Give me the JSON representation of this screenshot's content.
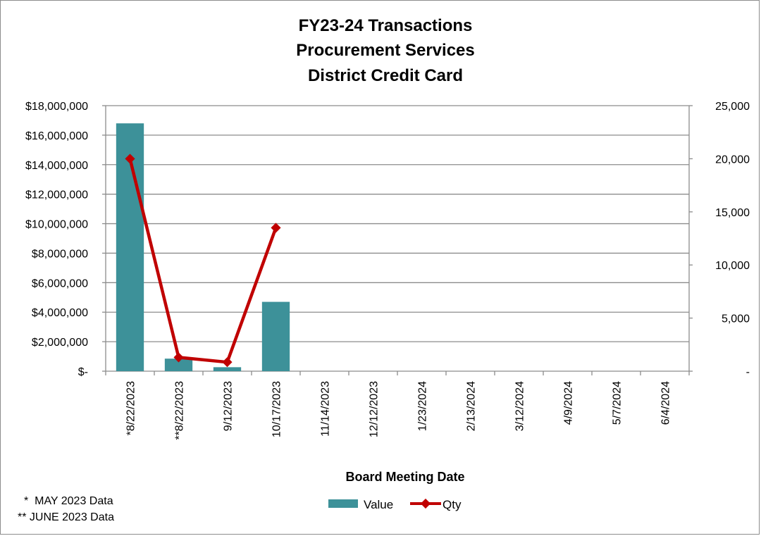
{
  "chart_data": {
    "type": "bar",
    "title": [
      "FY23-24 Transactions",
      "Procurement Services",
      "District Credit Card"
    ],
    "xlabel": "Board Meeting Date",
    "categories": [
      "*8/22/2023",
      "**8/22/2023",
      "9/12/2023",
      "10/17/2023",
      "11/14/2023",
      "12/12/2023",
      "1/23/2024",
      "2/13/2024",
      "3/12/2024",
      "4/9/2024",
      "5/7/2024",
      "6/4/2024"
    ],
    "series": [
      {
        "name": "Value",
        "type": "bar",
        "axis": "left",
        "color": "#3d9199",
        "values": [
          16800000,
          850000,
          270000,
          4700000,
          null,
          null,
          null,
          null,
          null,
          null,
          null,
          null
        ]
      },
      {
        "name": "Qty",
        "type": "line",
        "axis": "right",
        "color": "#c00000",
        "marker": "diamond",
        "values": [
          20000,
          1300,
          850,
          13500,
          null,
          null,
          null,
          null,
          null,
          null,
          null,
          null
        ]
      }
    ],
    "ylim_left": [
      0,
      18000000
    ],
    "yticks_left": [
      "$-",
      "$2,000,000",
      "$4,000,000",
      "$6,000,000",
      "$8,000,000",
      "$10,000,000",
      "$12,000,000",
      "$14,000,000",
      "$16,000,000",
      "$18,000,000"
    ],
    "ylim_right": [
      0,
      25000
    ],
    "yticks_right": [
      "-",
      "5,000",
      "10,000",
      "15,000",
      "20,000",
      "25,000"
    ],
    "grid": true,
    "legend": "bottom",
    "footnotes": [
      "*  MAY 2023 Data",
      "** JUNE 2023 Data"
    ]
  }
}
